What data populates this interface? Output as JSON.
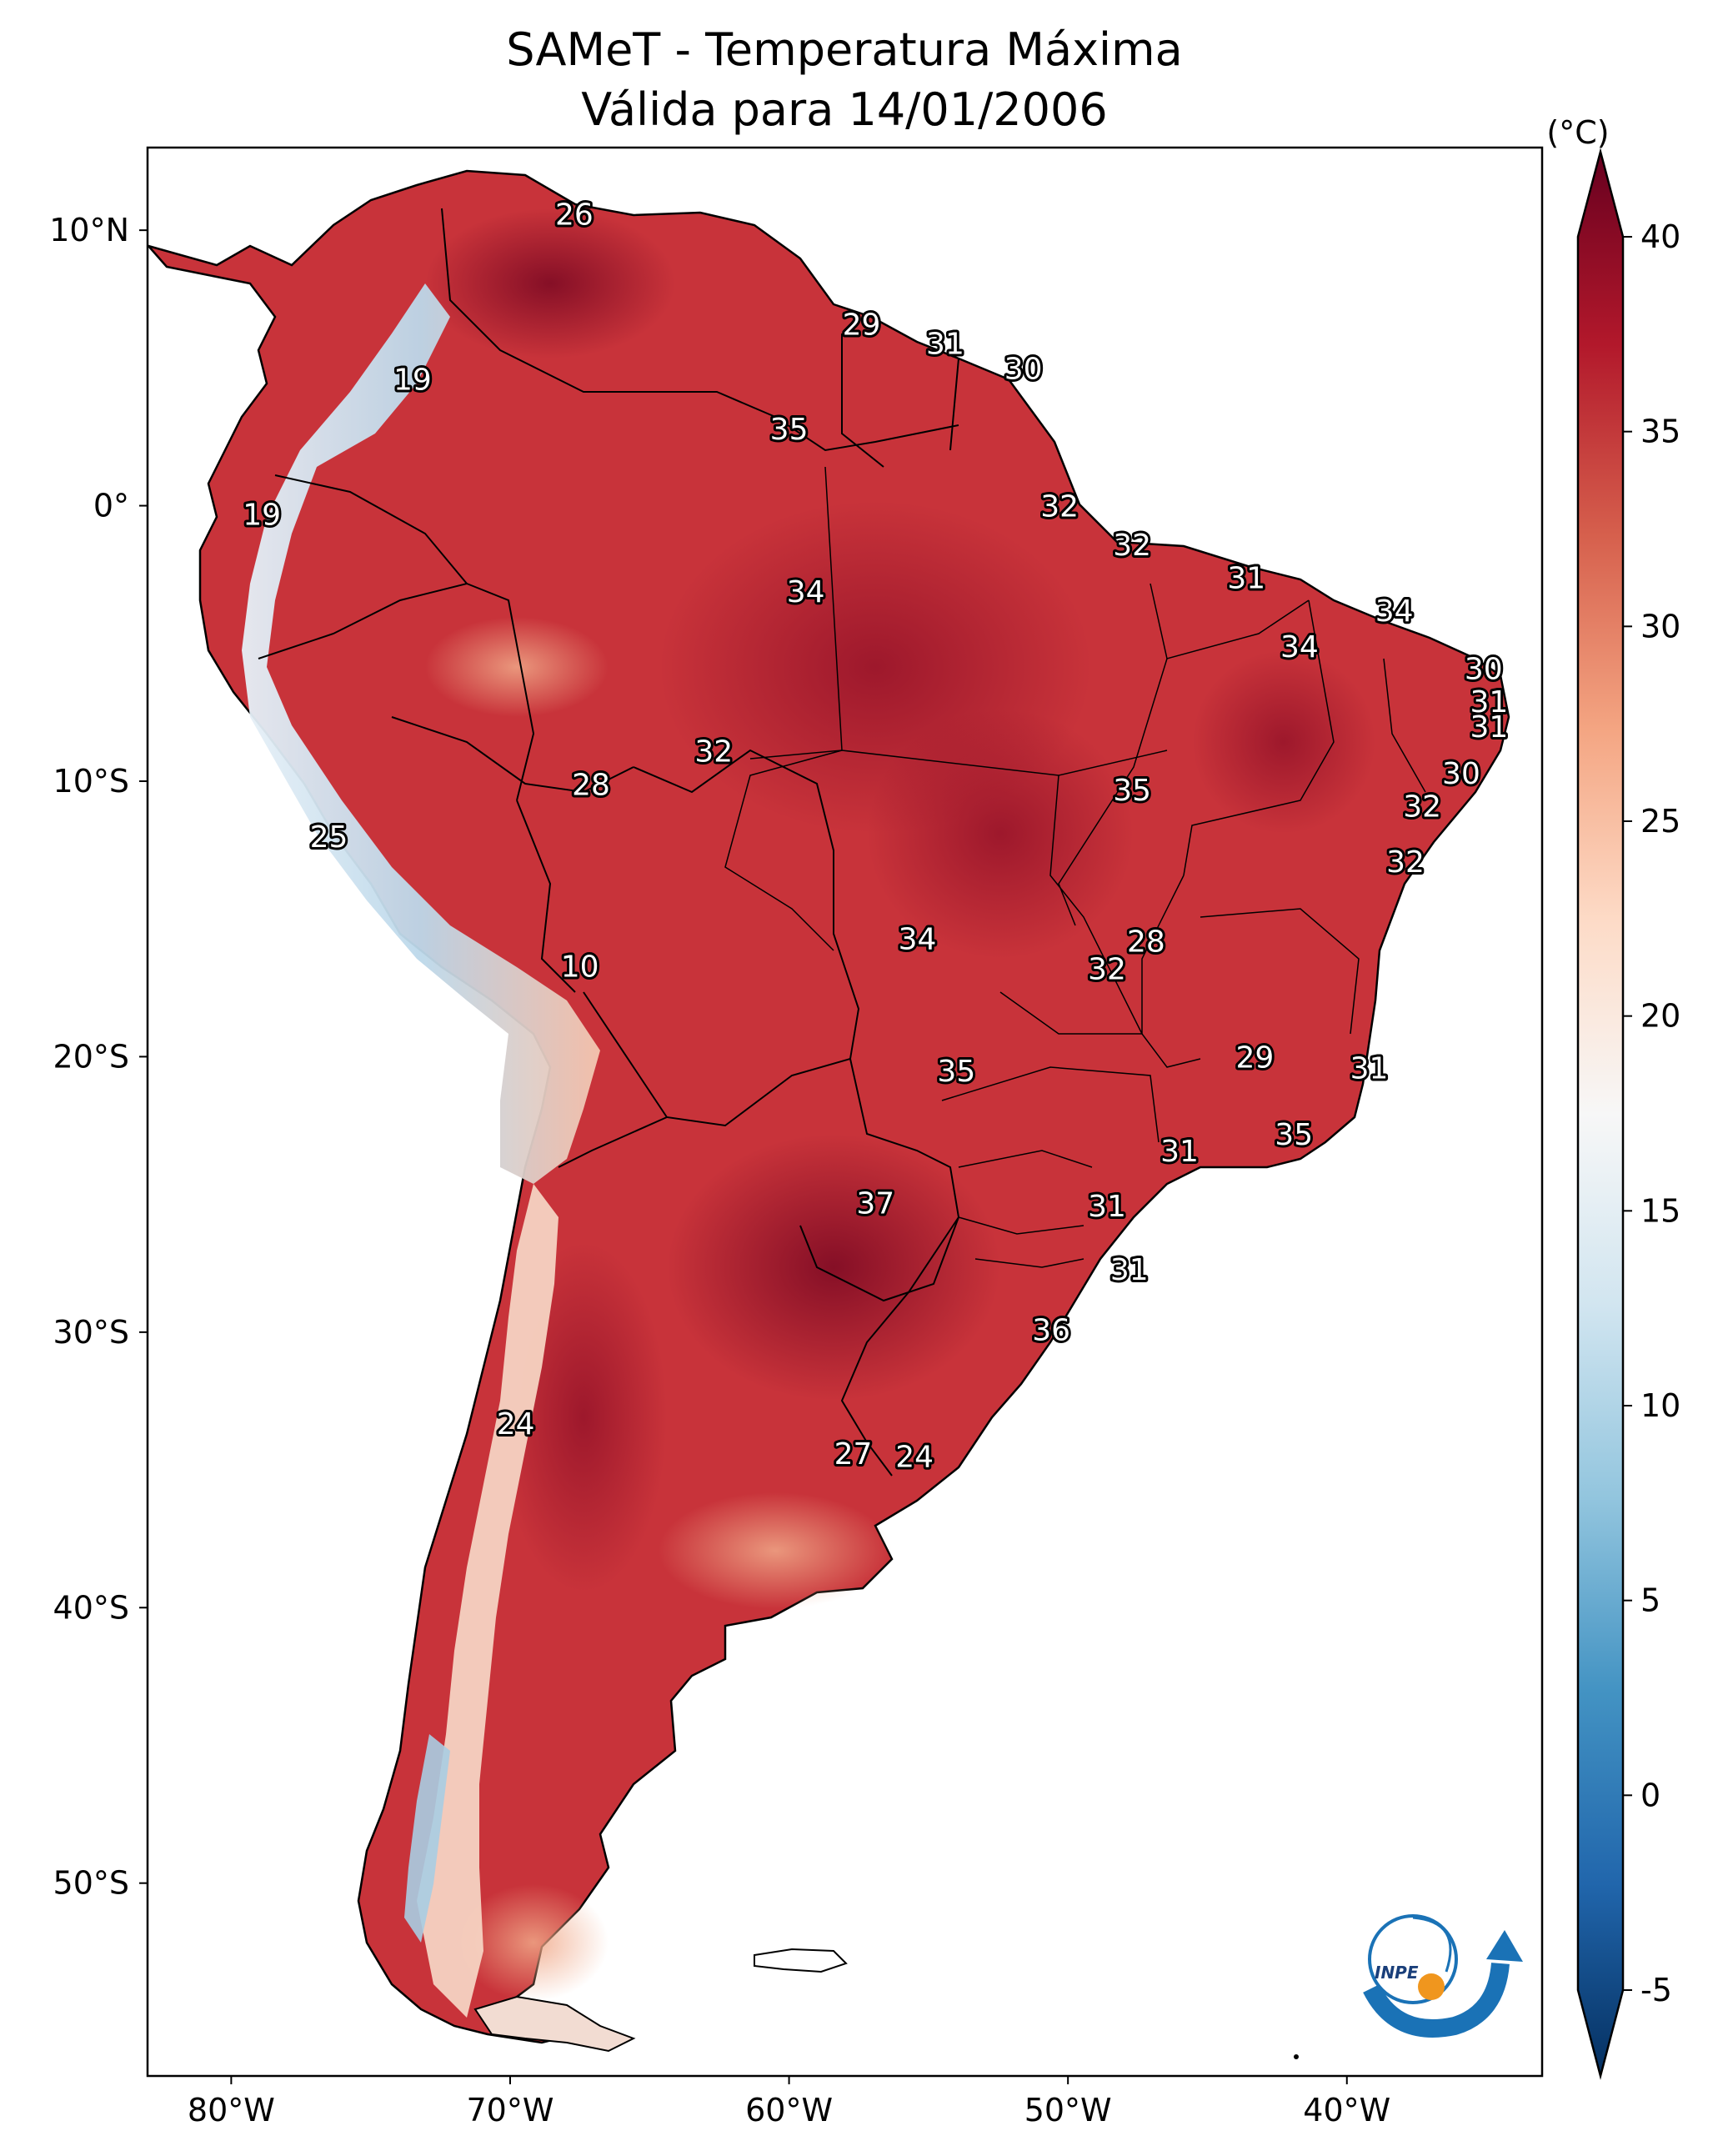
{
  "title_line1": "SAMeT - Temperatura Máxima",
  "title_line2": "Válida para 14/01/2006",
  "colorbar": {
    "unit": "(°C)",
    "ticks": [
      40,
      35,
      30,
      25,
      20,
      15,
      10,
      5,
      0,
      -5
    ],
    "tick_labels": [
      "40",
      "35",
      "30",
      "25",
      "20",
      "15",
      "10",
      "5",
      "0",
      "-5"
    ],
    "min": -5,
    "max": 40,
    "colormap": "RdBu_r",
    "colors": [
      "#053061",
      "#2166ac",
      "#4393c3",
      "#92c5de",
      "#d1e5f0",
      "#f7f7f7",
      "#fddbc7",
      "#f4a582",
      "#d6604d",
      "#b2182b",
      "#67001f"
    ]
  },
  "axes": {
    "lon_ticks": [
      -80,
      -70,
      -60,
      -50,
      -40
    ],
    "lon_labels": [
      "80°W",
      "70°W",
      "60°W",
      "50°W",
      "40°W"
    ],
    "lat_ticks": [
      10,
      0,
      -10,
      -20,
      -30,
      -40,
      -50
    ],
    "lat_labels": [
      "10°N",
      "0°",
      "10°S",
      "20°S",
      "30°S",
      "40°S",
      "50°S"
    ],
    "lon_range": [
      -83,
      -33
    ],
    "lat_range": [
      13,
      -57
    ]
  },
  "labels": [
    {
      "text": "26",
      "lon": -67.7,
      "lat": 10.6
    },
    {
      "text": "19",
      "lon": -73.5,
      "lat": 4.6
    },
    {
      "text": "29",
      "lon": -57.4,
      "lat": 6.6
    },
    {
      "text": "31",
      "lon": -54.4,
      "lat": 5.9
    },
    {
      "text": "30",
      "lon": -51.6,
      "lat": 5.0
    },
    {
      "text": "35",
      "lon": -60.0,
      "lat": 2.8
    },
    {
      "text": "19",
      "lon": -78.9,
      "lat": -0.3
    },
    {
      "text": "32",
      "lon": -50.3,
      "lat": 0.0
    },
    {
      "text": "32",
      "lon": -47.7,
      "lat": -1.4
    },
    {
      "text": "31",
      "lon": -43.6,
      "lat": -2.6
    },
    {
      "text": "34",
      "lon": -59.4,
      "lat": -3.1
    },
    {
      "text": "34",
      "lon": -38.3,
      "lat": -3.8
    },
    {
      "text": "34",
      "lon": -41.7,
      "lat": -5.1
    },
    {
      "text": "30",
      "lon": -35.1,
      "lat": -5.9
    },
    {
      "text": "31",
      "lon": -34.9,
      "lat": -7.1
    },
    {
      "text": "31",
      "lon": -34.9,
      "lat": -8.0
    },
    {
      "text": "32",
      "lon": -62.7,
      "lat": -8.9
    },
    {
      "text": "30",
      "lon": -35.9,
      "lat": -9.7
    },
    {
      "text": "28",
      "lon": -67.1,
      "lat": -10.1
    },
    {
      "text": "35",
      "lon": -47.7,
      "lat": -10.3
    },
    {
      "text": "32",
      "lon": -37.3,
      "lat": -10.9
    },
    {
      "text": "25",
      "lon": -76.5,
      "lat": -12.0
    },
    {
      "text": "32",
      "lon": -37.9,
      "lat": -12.9
    },
    {
      "text": "34",
      "lon": -55.4,
      "lat": -15.7
    },
    {
      "text": "28",
      "lon": -47.2,
      "lat": -15.8
    },
    {
      "text": "32",
      "lon": -48.6,
      "lat": -16.8
    },
    {
      "text": "10",
      "lon": -67.5,
      "lat": -16.7
    },
    {
      "text": "29",
      "lon": -43.3,
      "lat": -20.0
    },
    {
      "text": "31",
      "lon": -39.2,
      "lat": -20.4
    },
    {
      "text": "35",
      "lon": -54.0,
      "lat": -20.5
    },
    {
      "text": "35",
      "lon": -41.9,
      "lat": -22.8
    },
    {
      "text": "31",
      "lon": -46.0,
      "lat": -23.4
    },
    {
      "text": "37",
      "lon": -56.9,
      "lat": -25.3
    },
    {
      "text": "31",
      "lon": -48.6,
      "lat": -25.4
    },
    {
      "text": "31",
      "lon": -47.8,
      "lat": -27.7
    },
    {
      "text": "36",
      "lon": -50.6,
      "lat": -29.9
    },
    {
      "text": "24",
      "lon": -69.8,
      "lat": -33.3
    },
    {
      "text": "27",
      "lon": -57.7,
      "lat": -34.4
    },
    {
      "text": "24",
      "lon": -55.5,
      "lat": -34.5
    }
  ]
}
